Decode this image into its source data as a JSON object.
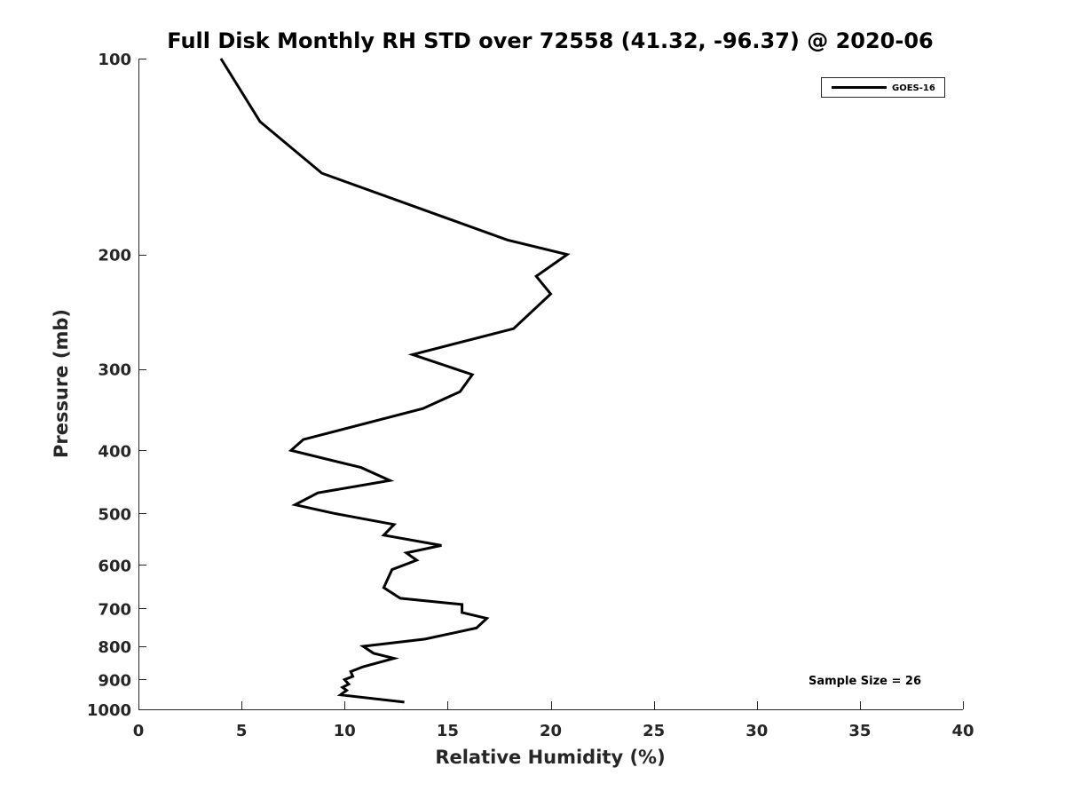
{
  "chart_data": {
    "type": "line",
    "title": "Full Disk Monthly RH STD over 72558 (41.32, -96.37) @ 2020-06",
    "xlabel": "Relative Humidity (%)",
    "ylabel": "Pressure (mb)",
    "xlim": [
      0,
      40
    ],
    "ylim": [
      100,
      1000
    ],
    "y_scale": "log",
    "y_reversed": true,
    "xticks": [
      0,
      5,
      10,
      15,
      20,
      25,
      30,
      35,
      40
    ],
    "yticks": [
      100,
      200,
      300,
      400,
      500,
      600,
      700,
      800,
      900,
      1000
    ],
    "grid": false,
    "legend": {
      "placement": "top-right",
      "entries": [
        "GOES-16"
      ]
    },
    "annotation": "Sample Size = 26",
    "series": [
      {
        "name": "GOES-16",
        "color": "#000000",
        "x": [
          4.0,
          5.9,
          8.9,
          17.9,
          20.8,
          19.3,
          20.0,
          18.2,
          13.3,
          16.2,
          15.6,
          13.8,
          8.0,
          7.4,
          10.8,
          12.2,
          8.7,
          7.6,
          9.5,
          12.4,
          11.9,
          14.7,
          13.0,
          13.5,
          12.3,
          11.9,
          12.7,
          15.7,
          15.7,
          16.9,
          16.4,
          13.9,
          10.9,
          11.4,
          12.4,
          10.9,
          10.3,
          10.4,
          10.0,
          10.2,
          9.9,
          10.1,
          9.8,
          12.9
        ],
        "y": [
          100,
          125,
          150,
          190,
          200,
          216,
          230,
          260,
          285,
          306,
          325,
          345,
          385,
          400,
          425,
          445,
          465,
          485,
          500,
          520,
          540,
          560,
          575,
          590,
          610,
          650,
          675,
          690,
          710,
          725,
          750,
          780,
          800,
          820,
          835,
          860,
          875,
          890,
          900,
          915,
          925,
          935,
          950,
          975
        ]
      }
    ]
  }
}
